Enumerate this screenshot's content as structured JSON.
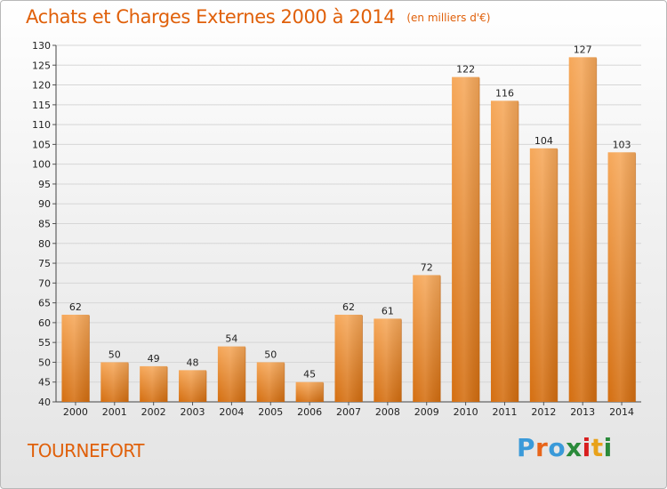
{
  "header": {
    "title": "Achats et Charges Externes 2000 à 2014",
    "unit": "(en milliers d'€)"
  },
  "footer": {
    "place": "TOURNEFORT",
    "brand": "Proxiti",
    "brand_colors": [
      "#3a9ad9",
      "#e8651a",
      "#3a9ad9",
      "#2a8a3a",
      "#d81e1e",
      "#e8a21a",
      "#2a8a3a"
    ]
  },
  "colors": {
    "title": "#e0600a",
    "bar_light": "#f6a85a",
    "bar_dark": "#d46e10",
    "grid": "#d6d6d6"
  },
  "chart_data": {
    "type": "bar",
    "title": "Achats et Charges Externes 2000 à 2014",
    "subtitle": "(en milliers d'€)",
    "xlabel": "",
    "ylabel": "",
    "categories": [
      "2000",
      "2001",
      "2002",
      "2003",
      "2004",
      "2005",
      "2006",
      "2007",
      "2008",
      "2009",
      "2010",
      "2011",
      "2012",
      "2013",
      "2014"
    ],
    "values": [
      62,
      50,
      49,
      48,
      54,
      50,
      45,
      62,
      61,
      72,
      122,
      116,
      104,
      127,
      103
    ],
    "ylim": [
      40,
      130
    ],
    "yticks": [
      40,
      45,
      50,
      55,
      60,
      65,
      70,
      75,
      80,
      85,
      90,
      95,
      100,
      105,
      110,
      115,
      120,
      125,
      130
    ],
    "grid": true,
    "legend": "none"
  }
}
